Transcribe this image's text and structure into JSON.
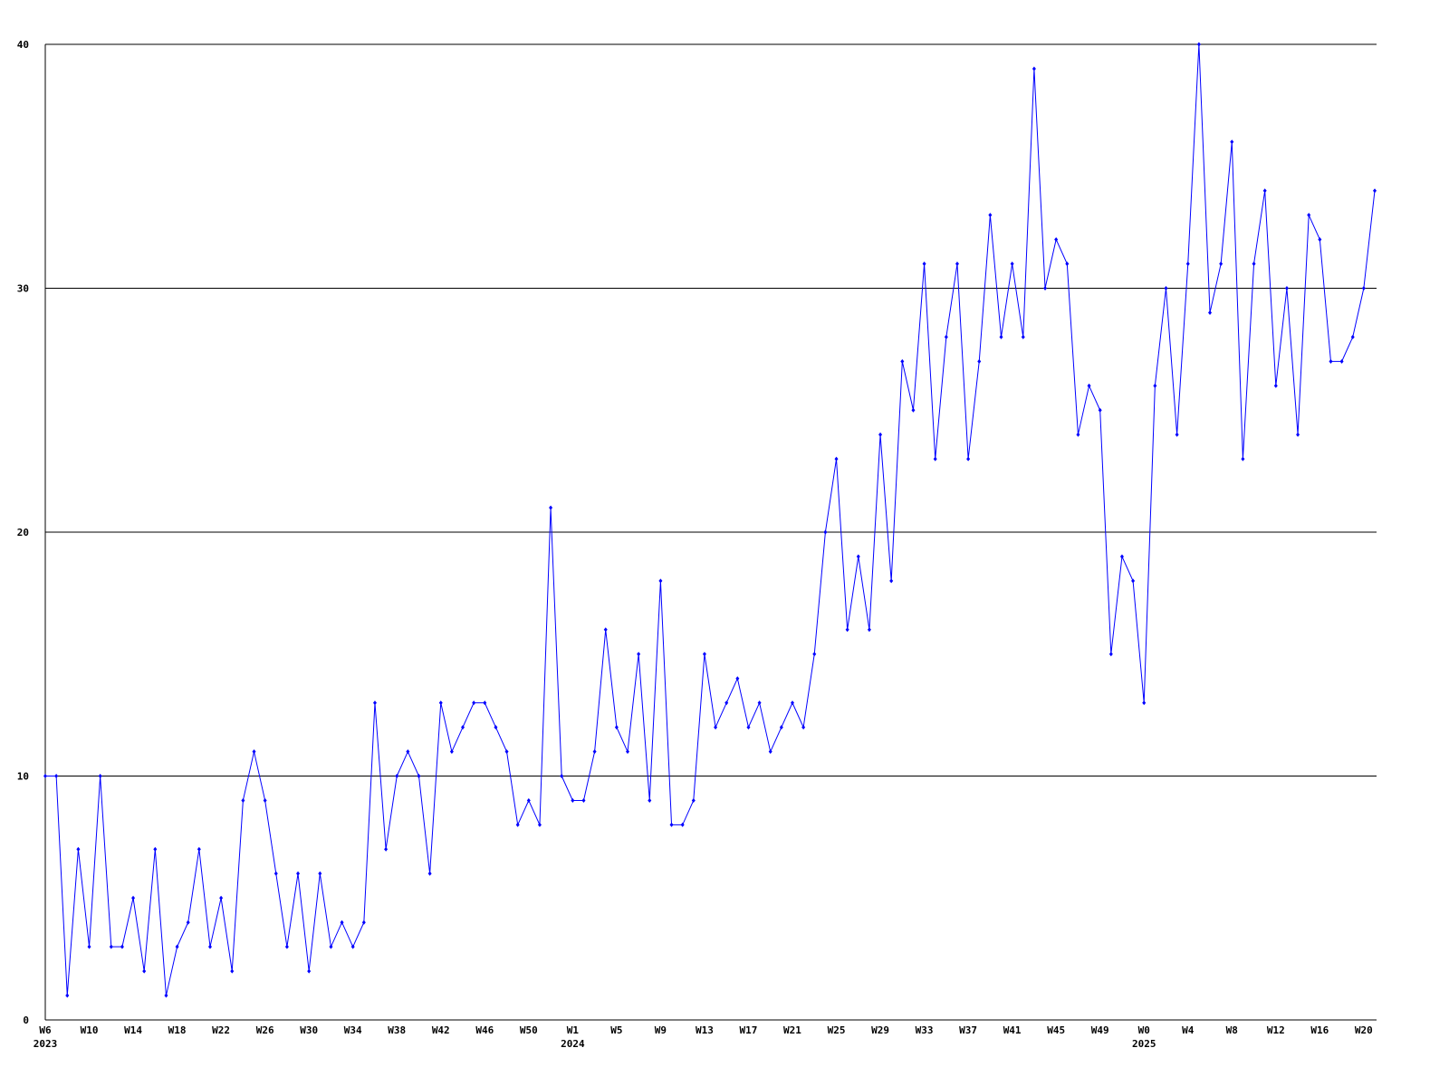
{
  "chart_data": {
    "type": "line",
    "categories": [
      "W6",
      null,
      null,
      null,
      "W10",
      null,
      null,
      null,
      "W14",
      null,
      null,
      null,
      "W18",
      null,
      null,
      null,
      "W22",
      null,
      null,
      null,
      "W26",
      null,
      null,
      null,
      "W30",
      null,
      null,
      null,
      "W34",
      null,
      null,
      null,
      "W38",
      null,
      null,
      null,
      "W42",
      null,
      null,
      null,
      "W46",
      null,
      null,
      null,
      "W50",
      null,
      null,
      null,
      "W1",
      null,
      null,
      null,
      "W5",
      null,
      null,
      null,
      "W9",
      null,
      null,
      null,
      "W13",
      null,
      null,
      null,
      "W17",
      null,
      null,
      null,
      "W21",
      null,
      null,
      null,
      "W25",
      null,
      null,
      null,
      "W29",
      null,
      null,
      null,
      "W33",
      null,
      null,
      null,
      "W37",
      null,
      null,
      null,
      "W41",
      null,
      null,
      null,
      "W45",
      null,
      null,
      null,
      "W49",
      null,
      null,
      null,
      "W0",
      null,
      null,
      null,
      "W4",
      null,
      null,
      null,
      "W8",
      null,
      null,
      null,
      "W12",
      null,
      null,
      null,
      "W16",
      null,
      null,
      null,
      "W20",
      null
    ],
    "year_labels": [
      {
        "index": 0,
        "label": "2023"
      },
      {
        "index": 48,
        "label": "2024"
      },
      {
        "index": 100,
        "label": "2025"
      }
    ],
    "series": [
      {
        "color": "#0000ff",
        "values": [
          10,
          10,
          1,
          7,
          3,
          10,
          3,
          3,
          5,
          2,
          7,
          1,
          3,
          4,
          7,
          3,
          5,
          2,
          9,
          11,
          9,
          6,
          3,
          6,
          2,
          6,
          3,
          4,
          3,
          4,
          13,
          7,
          10,
          11,
          10,
          6,
          13,
          11,
          12,
          13,
          13,
          12,
          11,
          8,
          9,
          8,
          21,
          10,
          9,
          9,
          11,
          16,
          12,
          11,
          15,
          9,
          18,
          8,
          8,
          9,
          15,
          12,
          13,
          14,
          12,
          13,
          11,
          12,
          13,
          12,
          15,
          20,
          23,
          16,
          19,
          16,
          24,
          18,
          27,
          25,
          31,
          23,
          28,
          31,
          23,
          27,
          33,
          28,
          31,
          28,
          39,
          30,
          32,
          31,
          24,
          26,
          25,
          15,
          19,
          18,
          13,
          26,
          30,
          24,
          31,
          40,
          29,
          31,
          36,
          23,
          31,
          34,
          26,
          30,
          24,
          33,
          32,
          27,
          27,
          28,
          30,
          34
        ]
      }
    ],
    "ylim": [
      0,
      40
    ],
    "yticks": [
      0,
      10,
      20,
      30,
      40
    ],
    "grid": true
  }
}
